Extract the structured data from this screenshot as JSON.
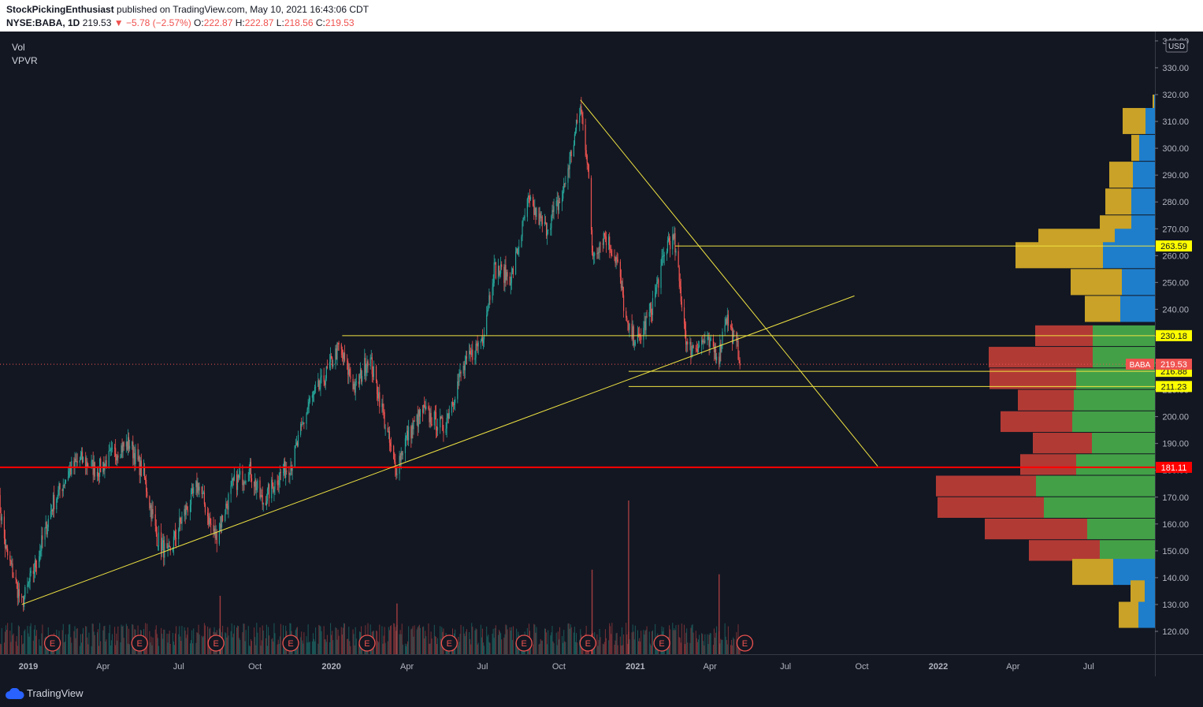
{
  "header": {
    "publisher": "StockPickingEnthusiast",
    "published_text": "published on TradingView.com, May 10, 2021 16:43:06 CDT",
    "symbol": "NYSE:BABA, 1D",
    "last": "219.53",
    "change": "▼ −5.78 (−2.57%)",
    "open_label": "O:",
    "open": "222.87",
    "high_label": "H:",
    "high": "222.87",
    "low_label": "L:",
    "low": "218.56",
    "close_label": "C:",
    "close": "219.53"
  },
  "indicators": [
    "Vol",
    "VPVR"
  ],
  "footer": {
    "brand": "TradingView",
    "logo_icon": "tradingview-cloud-icon"
  },
  "colors": {
    "background": "#131722",
    "up": "#26a69a",
    "down": "#ef5350",
    "trendline": "#f0e442",
    "support": "#ff0000",
    "vp_gold": "#c9a227",
    "vp_blue": "#1e7ecb",
    "vp_red": "#b23a35",
    "vp_green": "#43a047"
  },
  "chart_data": {
    "type": "candlestick",
    "symbol": "BABA",
    "currency": "USD",
    "ylim": [
      113,
      342
    ],
    "y_ticks": [
      120,
      130,
      140,
      150,
      160,
      170,
      180,
      190,
      200,
      210,
      220,
      230,
      240,
      250,
      260,
      270,
      280,
      290,
      300,
      310,
      320,
      330,
      340
    ],
    "x_ticks": [
      {
        "date": "2019-01-01",
        "label": "2019",
        "bold": true
      },
      {
        "date": "2019-04-01",
        "label": "Apr"
      },
      {
        "date": "2019-07-01",
        "label": "Jul"
      },
      {
        "date": "2019-10-01",
        "label": "Oct"
      },
      {
        "date": "2020-01-01",
        "label": "2020",
        "bold": true
      },
      {
        "date": "2020-04-01",
        "label": "Apr"
      },
      {
        "date": "2020-07-01",
        "label": "Jul"
      },
      {
        "date": "2020-10-01",
        "label": "Oct"
      },
      {
        "date": "2021-01-01",
        "label": "2021",
        "bold": true
      },
      {
        "date": "2021-04-01",
        "label": "Apr"
      },
      {
        "date": "2021-07-01",
        "label": "Jul"
      },
      {
        "date": "2021-10-01",
        "label": "Oct"
      },
      {
        "date": "2022-01-01",
        "label": "2022",
        "bold": true
      },
      {
        "date": "2022-04-01",
        "label": "Apr"
      },
      {
        "date": "2022-07-01",
        "label": "Jul"
      }
    ],
    "price_path": [
      [
        "2018-11-26",
        170
      ],
      [
        "2018-12-05",
        150
      ],
      [
        "2018-12-15",
        140
      ],
      [
        "2018-12-24",
        130
      ],
      [
        "2019-01-10",
        145
      ],
      [
        "2019-01-31",
        168
      ],
      [
        "2019-02-20",
        180
      ],
      [
        "2019-03-05",
        184
      ],
      [
        "2019-03-25",
        180
      ],
      [
        "2019-04-20",
        188
      ],
      [
        "2019-05-03",
        190
      ],
      [
        "2019-05-20",
        178
      ],
      [
        "2019-06-05",
        155
      ],
      [
        "2019-06-18",
        148
      ],
      [
        "2019-07-05",
        162
      ],
      [
        "2019-07-25",
        175
      ],
      [
        "2019-08-08",
        160
      ],
      [
        "2019-08-15",
        155
      ],
      [
        "2019-09-05",
        175
      ],
      [
        "2019-09-25",
        180
      ],
      [
        "2019-10-10",
        168
      ],
      [
        "2019-10-30",
        178
      ],
      [
        "2019-11-15",
        183
      ],
      [
        "2019-12-05",
        205
      ],
      [
        "2019-12-20",
        212
      ],
      [
        "2020-01-10",
        226
      ],
      [
        "2020-01-30",
        210
      ],
      [
        "2020-02-15",
        223
      ],
      [
        "2020-02-28",
        207
      ],
      [
        "2020-03-18",
        180
      ],
      [
        "2020-03-31",
        192
      ],
      [
        "2020-04-20",
        202
      ],
      [
        "2020-05-15",
        196
      ],
      [
        "2020-06-05",
        216
      ],
      [
        "2020-06-22",
        225
      ],
      [
        "2020-07-01",
        230
      ],
      [
        "2020-07-15",
        255
      ],
      [
        "2020-08-05",
        252
      ],
      [
        "2020-08-25",
        280
      ],
      [
        "2020-09-15",
        270
      ],
      [
        "2020-10-05",
        282
      ],
      [
        "2020-10-27",
        315
      ],
      [
        "2020-11-05",
        295
      ],
      [
        "2020-11-10",
        260
      ],
      [
        "2020-11-25",
        268
      ],
      [
        "2020-12-10",
        258
      ],
      [
        "2020-12-23",
        232
      ],
      [
        "2021-01-05",
        228
      ],
      [
        "2021-01-20",
        240
      ],
      [
        "2021-02-10",
        266
      ],
      [
        "2021-02-17",
        265
      ],
      [
        "2021-03-05",
        225
      ],
      [
        "2021-03-25",
        228
      ],
      [
        "2021-04-12",
        223
      ],
      [
        "2021-04-20",
        238
      ],
      [
        "2021-05-10",
        219.53
      ]
    ],
    "volume_spikes": [
      {
        "date": "2020-12-24",
        "value": 1.0
      },
      {
        "date": "2020-11-10",
        "value": 0.55
      },
      {
        "date": "2021-04-12",
        "value": 0.52
      },
      {
        "date": "2019-08-20",
        "value": 0.38
      },
      {
        "date": "2020-03-20",
        "value": 0.33
      }
    ],
    "earnings_dates": [
      "2019-01-30",
      "2019-05-15",
      "2019-08-15",
      "2019-11-13",
      "2020-02-13",
      "2020-05-22",
      "2020-08-20",
      "2020-11-05",
      "2021-02-02",
      "2021-05-13"
    ],
    "horizontal_lines": [
      {
        "price": 263.59,
        "start": "2021-02-18",
        "end": "2022-12-31",
        "color": "#f0e442",
        "label": "263.59"
      },
      {
        "price": 230.18,
        "start": "2020-01-14",
        "end": "2022-12-31",
        "color": "#f0e442",
        "label": "230.18"
      },
      {
        "price": 216.88,
        "start": "2020-12-24",
        "end": "2022-12-31",
        "color": "#f0e442",
        "label": "216.88"
      },
      {
        "price": 211.23,
        "start": "2020-12-24",
        "end": "2022-12-31",
        "color": "#f0e442",
        "label": "211.23"
      },
      {
        "price": 181.11,
        "start": "2018-11-26",
        "end": "2022-12-31",
        "color": "#ff0000",
        "label": "181.11",
        "thick": true
      }
    ],
    "trend_lines": [
      {
        "x1": "2018-12-24",
        "y1": 130,
        "x2": "2021-09-22",
        "y2": 245
      },
      {
        "x1": "2020-10-27",
        "y1": 318,
        "x2": "2021-10-20",
        "y2": 181.5
      }
    ],
    "last_price": {
      "label": "BABA",
      "value": "219.53",
      "price": 219.53
    },
    "volume_profile": [
      {
        "price": 315,
        "a": 2,
        "b": 1,
        "scheme": "gold-blue"
      },
      {
        "price": 310,
        "a": 29,
        "b": 12,
        "scheme": "gold-blue"
      },
      {
        "price": 300,
        "a": 10,
        "b": 20,
        "scheme": "gold-blue"
      },
      {
        "price": 290,
        "a": 30,
        "b": 28,
        "scheme": "gold-blue"
      },
      {
        "price": 280,
        "a": 33,
        "b": 30,
        "scheme": "gold-blue"
      },
      {
        "price": 270,
        "a": 40,
        "b": 30,
        "scheme": "gold-blue"
      },
      {
        "price": 265,
        "a": 97,
        "b": 51,
        "scheme": "gold-blue"
      },
      {
        "price": 260,
        "a": 111,
        "b": 66,
        "scheme": "gold-blue"
      },
      {
        "price": 250,
        "a": 65,
        "b": 42,
        "scheme": "gold-blue"
      },
      {
        "price": 240,
        "a": 45,
        "b": 44,
        "scheme": "gold-blue"
      },
      {
        "price": 230,
        "a": 73,
        "b": 79,
        "scheme": "red-green"
      },
      {
        "price": 222,
        "a": 132,
        "b": 79,
        "scheme": "red-green"
      },
      {
        "price": 214,
        "a": 110,
        "b": 100,
        "scheme": "red-green"
      },
      {
        "price": 206,
        "a": 71,
        "b": 103,
        "scheme": "red-green"
      },
      {
        "price": 198,
        "a": 91,
        "b": 105,
        "scheme": "red-green"
      },
      {
        "price": 190,
        "a": 75,
        "b": 80,
        "scheme": "red-green"
      },
      {
        "price": 182,
        "a": 71,
        "b": 100,
        "scheme": "red-green"
      },
      {
        "price": 174,
        "a": 127,
        "b": 151,
        "scheme": "red-green"
      },
      {
        "price": 166,
        "a": 135,
        "b": 141,
        "scheme": "red-green"
      },
      {
        "price": 158,
        "a": 130,
        "b": 86,
        "scheme": "red-green"
      },
      {
        "price": 150,
        "a": 90,
        "b": 70,
        "scheme": "red-green"
      },
      {
        "price": 142,
        "a": 52,
        "b": 53,
        "scheme": "gold-blue"
      },
      {
        "price": 134,
        "a": 18,
        "b": 13,
        "scheme": "gold-blue"
      },
      {
        "price": 126,
        "a": 25,
        "b": 21,
        "scheme": "gold-blue"
      }
    ]
  }
}
